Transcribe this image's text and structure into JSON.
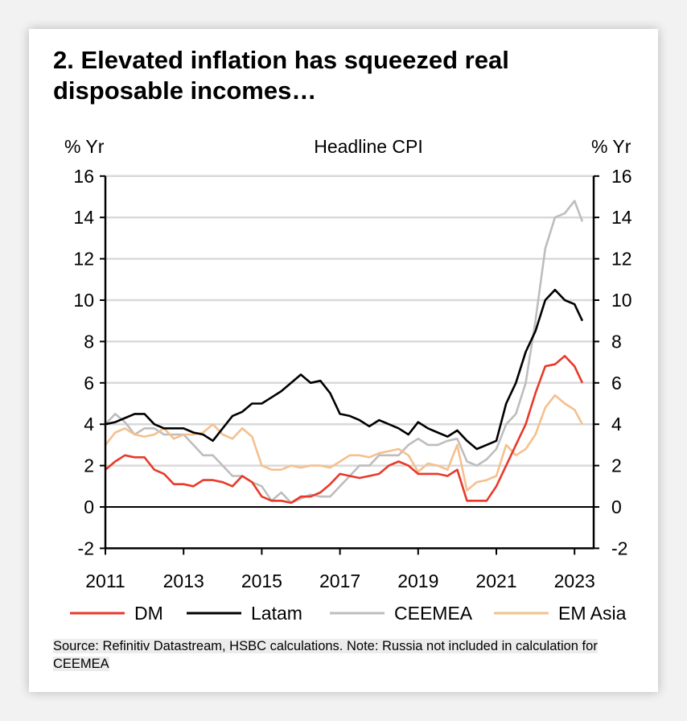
{
  "title": "2. Elevated inflation has squeezed real disposable incomes…",
  "source": "Source: Refinitiv Datastream, HSBC calculations. Note: Russia not included in calculation for CEEMEA",
  "chart_data": {
    "type": "line",
    "title": "Headline CPI",
    "ylabel_left": "% Yr",
    "ylabel_right": "% Yr",
    "ylim": [
      -2,
      16
    ],
    "yticks": [
      -2,
      0,
      2,
      4,
      6,
      8,
      10,
      12,
      14,
      16
    ],
    "xlim": [
      2011,
      2023.5
    ],
    "xticks": [
      2011,
      2013,
      2015,
      2017,
      2019,
      2021,
      2023
    ],
    "grid": true,
    "legend": "bottom",
    "x": [
      2011,
      2011.25,
      2011.5,
      2011.75,
      2012,
      2012.25,
      2012.5,
      2012.75,
      2013,
      2013.25,
      2013.5,
      2013.75,
      2014,
      2014.25,
      2014.5,
      2014.75,
      2015,
      2015.25,
      2015.5,
      2015.75,
      2016,
      2016.25,
      2016.5,
      2016.75,
      2017,
      2017.25,
      2017.5,
      2017.75,
      2018,
      2018.25,
      2018.5,
      2018.75,
      2019,
      2019.25,
      2019.5,
      2019.75,
      2020,
      2020.25,
      2020.5,
      2020.75,
      2021,
      2021.25,
      2021.5,
      2021.75,
      2022,
      2022.25,
      2022.5,
      2022.75,
      2023,
      2023.2
    ],
    "series": [
      {
        "name": "DM",
        "color": "#e8392a",
        "values": [
          1.8,
          2.2,
          2.5,
          2.4,
          2.4,
          1.8,
          1.6,
          1.1,
          1.1,
          1.0,
          1.3,
          1.3,
          1.2,
          1.0,
          1.5,
          1.2,
          0.5,
          0.3,
          0.3,
          0.2,
          0.5,
          0.5,
          0.7,
          1.1,
          1.6,
          1.5,
          1.4,
          1.5,
          1.6,
          2.0,
          2.2,
          2.0,
          1.6,
          1.6,
          1.6,
          1.5,
          1.8,
          0.3,
          0.3,
          0.3,
          1.0,
          2.0,
          3.0,
          4.0,
          5.5,
          6.8,
          6.9,
          7.3,
          6.8,
          6.0
        ]
      },
      {
        "name": "Latam",
        "color": "#000000",
        "values": [
          4.0,
          4.1,
          4.3,
          4.5,
          4.5,
          4.0,
          3.8,
          3.8,
          3.8,
          3.6,
          3.5,
          3.2,
          3.8,
          4.4,
          4.6,
          5.0,
          5.0,
          5.3,
          5.6,
          6.0,
          6.4,
          6.0,
          6.1,
          5.5,
          4.5,
          4.4,
          4.2,
          3.9,
          4.2,
          4.0,
          3.8,
          3.5,
          4.1,
          3.8,
          3.6,
          3.4,
          3.7,
          3.2,
          2.8,
          3.0,
          3.2,
          5.0,
          6.0,
          7.5,
          8.5,
          10.0,
          10.5,
          10.0,
          9.8,
          9.0
        ]
      },
      {
        "name": "CEEMEA",
        "color": "#bdbdbd",
        "values": [
          4.0,
          4.5,
          4.1,
          3.5,
          3.8,
          3.8,
          3.5,
          3.5,
          3.5,
          3.0,
          2.5,
          2.5,
          2.0,
          1.5,
          1.5,
          1.2,
          1.0,
          0.3,
          0.7,
          0.2,
          0.4,
          0.6,
          0.5,
          0.5,
          1.0,
          1.5,
          2.0,
          2.0,
          2.5,
          2.5,
          2.5,
          3.0,
          3.3,
          3.0,
          3.0,
          3.2,
          3.3,
          2.2,
          2.0,
          2.3,
          2.8,
          4.0,
          4.5,
          6.0,
          9.0,
          12.5,
          14.0,
          14.2,
          14.8,
          13.8
        ]
      },
      {
        "name": "EM Asia",
        "color": "#f5c08e",
        "values": [
          3.0,
          3.6,
          3.8,
          3.5,
          3.4,
          3.5,
          3.8,
          3.3,
          3.5,
          3.5,
          3.6,
          4.0,
          3.5,
          3.3,
          3.8,
          3.4,
          2.0,
          1.8,
          1.8,
          2.0,
          1.9,
          2.0,
          2.0,
          1.9,
          2.2,
          2.5,
          2.5,
          2.4,
          2.6,
          2.7,
          2.8,
          2.5,
          1.7,
          2.1,
          2.0,
          1.8,
          3.0,
          0.8,
          1.2,
          1.3,
          1.5,
          3.0,
          2.5,
          2.8,
          3.5,
          4.8,
          5.4,
          5.0,
          4.7,
          4.0
        ]
      }
    ]
  }
}
